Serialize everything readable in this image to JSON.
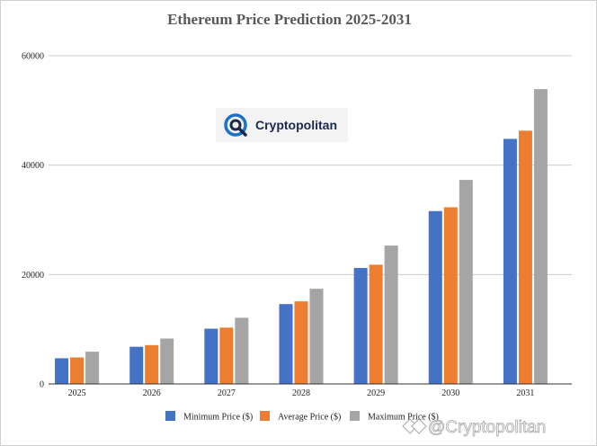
{
  "chart_data": {
    "type": "bar",
    "title": "Ethereum Price Prediction 2025-2031",
    "categories": [
      "2025",
      "2026",
      "2027",
      "2028",
      "2029",
      "2030",
      "2031"
    ],
    "series": [
      {
        "name": "Minimum Price ($)",
        "color": "#4472c4",
        "values": [
          4700,
          6800,
          10100,
          14600,
          21200,
          31600,
          44800
        ]
      },
      {
        "name": "Average Price ($)",
        "color": "#ed7d31",
        "values": [
          4850,
          7100,
          10300,
          15100,
          21800,
          32300,
          46300
        ]
      },
      {
        "name": "Maximum Price ($)",
        "color": "#a5a5a5",
        "values": [
          5900,
          8300,
          12100,
          17400,
          25300,
          37300,
          53900
        ]
      }
    ],
    "ylim": [
      0,
      60000
    ],
    "yticks": [
      0,
      20000,
      40000,
      60000
    ],
    "grid": true,
    "legend_position": "bottom"
  },
  "logo": {
    "text": "Cryptopolitan"
  },
  "watermark": {
    "text": "@Cryptopolitan"
  }
}
